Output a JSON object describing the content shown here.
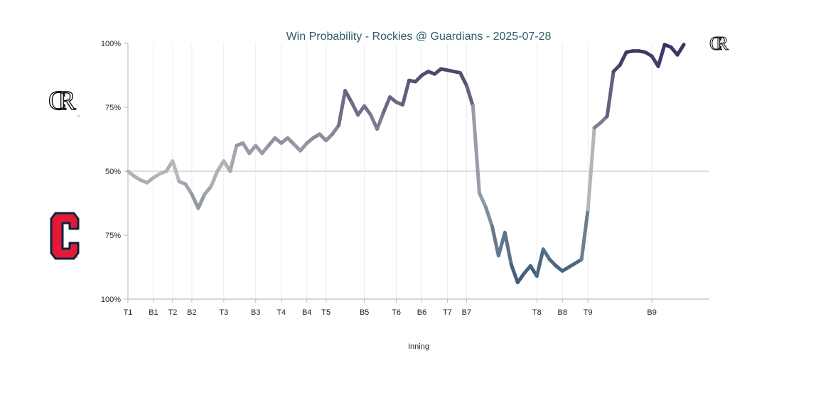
{
  "chart_data": {
    "type": "line",
    "title": "Win Probability - Rockies @ Guardians - 2025-07-28",
    "xlabel": "Inning",
    "ylabel": "",
    "y_ticks": [
      "100%",
      "75%",
      "50%",
      "75%",
      "100%"
    ],
    "y_tick_values": [
      100,
      75,
      50,
      25,
      0
    ],
    "ylim": [
      0,
      100
    ],
    "xlim": [
      0,
      91
    ],
    "x_ticks": [
      {
        "label": "T1",
        "x": 0
      },
      {
        "label": "B1",
        "x": 4
      },
      {
        "label": "T2",
        "x": 7
      },
      {
        "label": "B2",
        "x": 10
      },
      {
        "label": "T3",
        "x": 15
      },
      {
        "label": "B3",
        "x": 20
      },
      {
        "label": "T4",
        "x": 24
      },
      {
        "label": "B4",
        "x": 28
      },
      {
        "label": "T5",
        "x": 31
      },
      {
        "label": "B5",
        "x": 37
      },
      {
        "label": "T6",
        "x": 42
      },
      {
        "label": "B6",
        "x": 46
      },
      {
        "label": "T7",
        "x": 50
      },
      {
        "label": "B7",
        "x": 53
      },
      {
        "label": "T8",
        "x": 64
      },
      {
        "label": "B8",
        "x": 68
      },
      {
        "label": "T9",
        "x": 72
      },
      {
        "label": "B9",
        "x": 82
      }
    ],
    "grid": true,
    "series": [
      {
        "values": [
          50,
          48,
          46.5,
          45.5,
          47.5,
          49,
          50,
          54,
          46,
          45,
          41,
          35.5,
          41,
          44,
          50,
          54,
          50,
          60,
          61,
          57,
          60,
          57,
          60,
          63,
          61,
          63,
          60.5,
          58,
          61,
          63,
          64.5,
          62,
          64.5,
          68,
          81.5,
          77,
          72,
          75.5,
          72,
          66.5,
          73,
          79,
          77,
          76,
          85.5,
          85,
          87.5,
          89,
          88,
          90,
          89.5,
          89,
          88.5,
          83.5,
          75.5,
          41.5,
          36,
          28.5,
          17,
          26,
          13.5,
          6.5,
          10,
          13,
          9,
          19.5,
          15.5,
          13,
          11,
          12.5,
          14,
          15.5,
          35,
          67,
          69,
          71.5,
          89,
          91.5,
          96.5,
          97,
          97,
          96.5,
          95,
          91,
          99.5,
          98.5,
          95.5,
          99.5
        ]
      }
    ],
    "reference_line": 50,
    "colors": {
      "neutral": "#b9b9bc",
      "rockies": "#33305e",
      "guardians": "#2b4e6e",
      "gridline": "#ececec",
      "axis": "#bdbdbd",
      "title": "#2e5e66",
      "guardians_red": "#e31937",
      "guardians_navy": "#0c2340"
    },
    "logos": {
      "top_team": "rockies-logo",
      "bottom_team": "guardians-logo",
      "rockies_monogram": "CR",
      "guardians_monogram": "C",
      "trademark": "™"
    }
  }
}
